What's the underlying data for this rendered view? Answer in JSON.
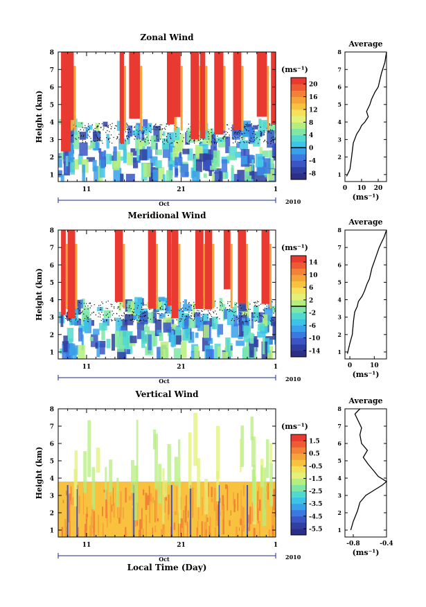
{
  "colors": {
    "colorbar": [
      "#2b2f86",
      "#2f3f9f",
      "#3a55c4",
      "#3b78e0",
      "#3aa0ea",
      "#3cc4e8",
      "#52d9cf",
      "#7fe6a6",
      "#b6ee7e",
      "#e3f07a",
      "#f5e05a",
      "#f8c23e",
      "#f6a43a",
      "#f28236",
      "#ee5a33",
      "#e83a30"
    ],
    "zero_line": "#000000",
    "background": "#ffffff"
  },
  "shared": {
    "time_axis": {
      "ticks": [
        {
          "day": 11,
          "label": "11"
        },
        {
          "day": 21,
          "label": "21"
        },
        {
          "day": 31,
          "label": "1"
        }
      ],
      "range": [
        8,
        31
      ],
      "month_label": "Oct",
      "year_label": "2010",
      "xlabel": "Local Time (Day)"
    },
    "height_axis": {
      "label": "Height (km)",
      "range": [
        0.6,
        8
      ],
      "ticks": [
        1,
        2,
        3,
        4,
        5,
        6,
        7,
        8
      ]
    },
    "unit_label": "(ms⁻¹)",
    "avg_unit_label": "(ms⁻¹)",
    "avg_title": "Average"
  },
  "chart_data": [
    {
      "type": "heatmap",
      "title": "Zonal Wind",
      "colorbar_ticks": [
        -8,
        -4,
        0,
        4,
        8,
        12,
        16,
        20
      ],
      "colorbar_labels": [
        "-8",
        "-4",
        "0",
        "4",
        "8",
        "12",
        "16",
        "20"
      ],
      "colorbar_range": [
        -10,
        22
      ],
      "zero_tick": 0
    },
    {
      "type": "heatmap",
      "title": "Meridional Wind",
      "colorbar_ticks": [
        -14,
        -10,
        -6,
        -2,
        2,
        6,
        10,
        14
      ],
      "colorbar_labels": [
        "-14",
        "-10",
        "-6",
        "-2",
        "2",
        "6",
        "10",
        "14"
      ],
      "colorbar_range": [
        -16,
        16
      ],
      "zero_tick": 0
    },
    {
      "type": "heatmap",
      "title": "Vertical Wind",
      "colorbar_ticks": [
        -5.5,
        -4.5,
        -3.5,
        -2.5,
        -1.5,
        -0.5,
        0.5,
        1.5
      ],
      "colorbar_labels": [
        "-5.5",
        "-4.5",
        "-3.5",
        "-2.5",
        "-1.5",
        "-0.5",
        "0.5",
        "1.5"
      ],
      "colorbar_range": [
        -6,
        2
      ],
      "zero_tick": null
    },
    {
      "type": "line",
      "title": "Average",
      "xlabel": "(ms⁻¹)",
      "ylabel": "",
      "xlim": [
        0,
        25
      ],
      "ylim": [
        0.6,
        8
      ],
      "xticks": [
        0,
        10,
        20
      ],
      "xtick_labels": [
        "0",
        "10",
        "20"
      ],
      "x": [
        1,
        3,
        4,
        5,
        7,
        9,
        10,
        12,
        14,
        13,
        15,
        16,
        18,
        20,
        21,
        22,
        23,
        24,
        25
      ],
      "y": [
        0.9,
        1.3,
        2.0,
        2.8,
        3.3,
        3.6,
        3.8,
        4.0,
        4.3,
        4.6,
        5.0,
        5.3,
        5.7,
        6.0,
        6.4,
        6.8,
        7.1,
        7.4,
        8.0
      ]
    },
    {
      "type": "line",
      "title": "Average",
      "xlabel": "(ms⁻¹)",
      "ylabel": "",
      "xlim": [
        -2,
        15
      ],
      "ylim": [
        0.6,
        8
      ],
      "xticks": [
        0,
        10
      ],
      "xtick_labels": [
        "0",
        "10"
      ],
      "x": [
        -1,
        0,
        1,
        1.5,
        2,
        3,
        3.5,
        5,
        6,
        7,
        8,
        8.5,
        9,
        10,
        11,
        12,
        13,
        14,
        15
      ],
      "y": [
        0.9,
        1.5,
        2.0,
        2.8,
        3.3,
        3.6,
        3.9,
        4.2,
        4.5,
        4.9,
        5.2,
        5.5,
        5.8,
        6.2,
        6.6,
        7.0,
        7.3,
        7.6,
        8.0
      ]
    },
    {
      "type": "line",
      "title": "Average",
      "xlabel": "(ms⁻¹)",
      "ylabel": "",
      "xlim": [
        -0.9,
        -0.4
      ],
      "ylim": [
        0.6,
        8
      ],
      "xticks": [
        -0.8,
        -0.4
      ],
      "xtick_labels": [
        "-0.8",
        "-0.4"
      ],
      "x": [
        -0.83,
        -0.8,
        -0.75,
        -0.72,
        -0.65,
        -0.55,
        -0.45,
        -0.4,
        -0.5,
        -0.55,
        -0.62,
        -0.68,
        -0.63,
        -0.7,
        -0.72,
        -0.7,
        -0.74,
        -0.78,
        -0.72
      ],
      "y": [
        1.0,
        1.5,
        2.1,
        2.6,
        3.0,
        3.3,
        3.6,
        3.8,
        4.1,
        4.4,
        4.8,
        5.2,
        5.6,
        6.0,
        6.5,
        6.9,
        7.3,
        7.7,
        8.0
      ]
    }
  ]
}
